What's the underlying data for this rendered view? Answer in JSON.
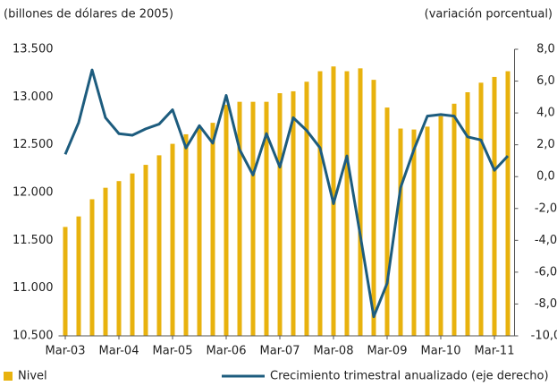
{
  "chart_data": {
    "type": "bar-line",
    "y_label": "(billones de dólares de 2005)",
    "y2_label": "(variación porcentual)",
    "categories": [
      "Mar-03",
      null,
      null,
      null,
      "Mar-04",
      null,
      null,
      null,
      "Mar-05",
      null,
      null,
      null,
      "Mar-06",
      null,
      null,
      null,
      "Mar-07",
      null,
      null,
      null,
      "Mar-08",
      null,
      null,
      null,
      "Mar-09",
      null,
      null,
      null,
      "Mar-10",
      null,
      null,
      null,
      "Mar-11",
      null
    ],
    "series": [
      {
        "name": "Nivel",
        "type": "bar",
        "color": "#e8b20e",
        "values": [
          11640,
          11750,
          11930,
          12050,
          12120,
          12200,
          12290,
          12390,
          12510,
          12610,
          12680,
          12730,
          12920,
          12950,
          12950,
          12950,
          13040,
          13060,
          13160,
          13270,
          13320,
          13270,
          13300,
          13180,
          12890,
          12670,
          12660,
          12690,
          12800,
          12930,
          13050,
          13150,
          13210,
          13270
        ]
      },
      {
        "name": "Crecimiento trimestral anualizado (eje derecho)",
        "type": "line",
        "axis": "y2",
        "color": "#1d5c7e",
        "values": [
          1.4,
          3.4,
          6.7,
          3.7,
          2.7,
          2.6,
          3.0,
          3.3,
          4.2,
          1.8,
          3.2,
          2.1,
          5.1,
          1.7,
          0.1,
          2.7,
          0.6,
          3.7,
          2.9,
          1.8,
          -1.7,
          1.3,
          -3.7,
          -8.8,
          -6.7,
          -0.7,
          1.7,
          3.8,
          3.9,
          3.8,
          2.5,
          2.3,
          0.4,
          1.3
        ]
      }
    ],
    "ylim": [
      10500,
      13500
    ],
    "yticks": [
      {
        "value": 10500,
        "label": "10.500"
      },
      {
        "value": 11000,
        "label": "11.000"
      },
      {
        "value": 11500,
        "label": "11.500"
      },
      {
        "value": 12000,
        "label": "12.000"
      },
      {
        "value": 12500,
        "label": "12.500"
      },
      {
        "value": 13000,
        "label": "13.000"
      },
      {
        "value": 13500,
        "label": "13.500"
      }
    ],
    "y2lim": [
      -10,
      8
    ],
    "y2ticks": [
      {
        "value": -10,
        "label": "-10,0"
      },
      {
        "value": -8,
        "label": "-8,0"
      },
      {
        "value": -6,
        "label": "-6,0"
      },
      {
        "value": -4,
        "label": "-4,0"
      },
      {
        "value": -2,
        "label": "-2,0"
      },
      {
        "value": 0,
        "label": "0,0"
      },
      {
        "value": 2,
        "label": "2,0"
      },
      {
        "value": 4,
        "label": "4,0"
      },
      {
        "value": 6,
        "label": "6,0"
      },
      {
        "value": 8,
        "label": "8,0"
      }
    ],
    "grid": false,
    "legend": "bottom"
  }
}
